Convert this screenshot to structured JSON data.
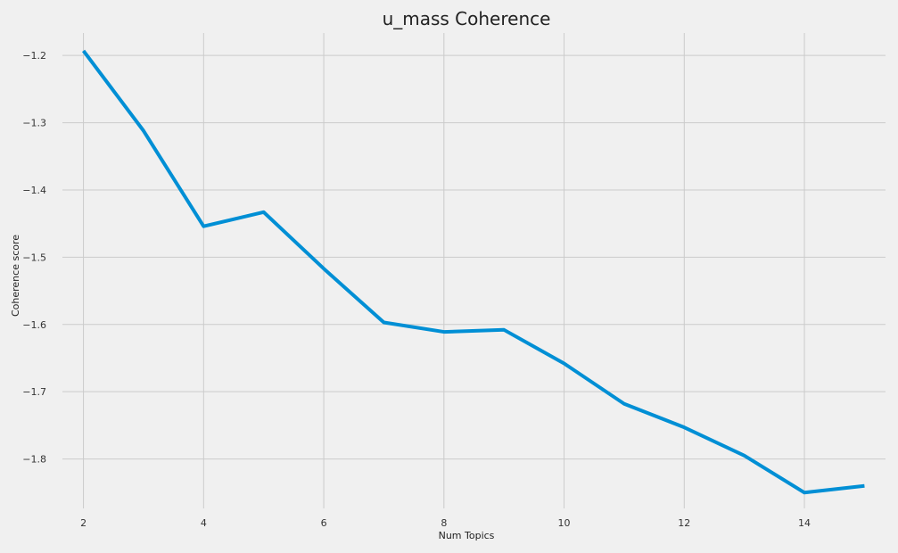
{
  "chart_data": {
    "type": "line",
    "title": "u_mass Coherence",
    "xlabel": "Num Topics",
    "ylabel": "Coherence score",
    "x": [
      2,
      3,
      4,
      5,
      6,
      7,
      8,
      9,
      10,
      11,
      12,
      13,
      14,
      15
    ],
    "series": [
      {
        "values": [
          -1.193,
          -1.312,
          -1.454,
          -1.433,
          -1.517,
          -1.597,
          -1.611,
          -1.608,
          -1.658,
          -1.718,
          -1.753,
          -1.795,
          -1.85,
          -1.84
        ],
        "color": "#008fd5"
      }
    ],
    "xticks": [
      2,
      4,
      6,
      8,
      10,
      12,
      14
    ],
    "yticks": [
      -1.2,
      -1.3,
      -1.4,
      -1.5,
      -1.6,
      -1.7,
      -1.8
    ],
    "xlim": [
      1.65,
      15.35
    ],
    "ylim": [
      -1.8735,
      -1.1666
    ],
    "grid": true,
    "background": "#f0f0f0"
  }
}
